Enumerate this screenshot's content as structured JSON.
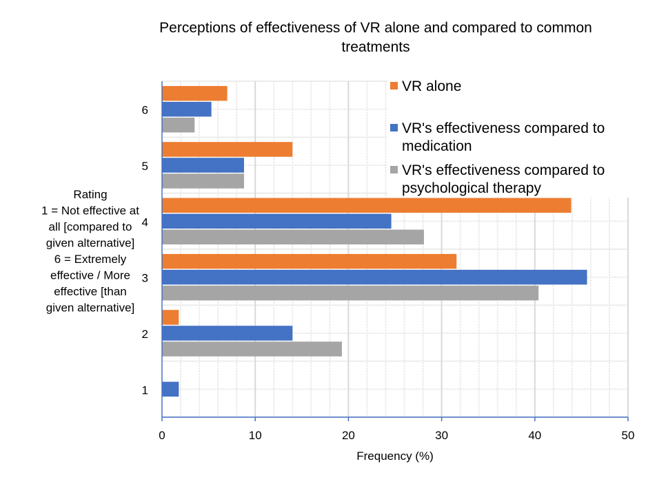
{
  "chart_data": {
    "type": "bar",
    "orientation": "horizontal",
    "title": [
      "Perceptions of effectiveness of VR alone and compared to common",
      "treatments"
    ],
    "xlabel": "Frequency (%)",
    "ylabel": [
      "Rating",
      "1 = Not effective at",
      "all [compared to",
      "given alternative]",
      "6 = Extremely",
      "effective / More",
      "effective [than",
      "given alternative]"
    ],
    "categories": [
      "6",
      "5",
      "4",
      "3",
      "2",
      "1"
    ],
    "xlim": [
      0,
      50
    ],
    "xticks": [
      "0",
      "10",
      "20",
      "30",
      "40",
      "50"
    ],
    "grid": true,
    "legend_position": "top-right",
    "series": [
      {
        "name": "VR alone",
        "color": "#ED7D31",
        "values": [
          7.0,
          14.0,
          43.9,
          31.6,
          1.8,
          0
        ]
      },
      {
        "name": [
          "VR's effectiveness compared to",
          "medication"
        ],
        "color": "#4472C4",
        "values": [
          5.3,
          8.8,
          24.6,
          45.6,
          14.0,
          1.8
        ]
      },
      {
        "name": [
          "VR's effectiveness compared to",
          "psychological therapy"
        ],
        "color": "#A5A5A5",
        "values": [
          3.5,
          8.8,
          28.1,
          40.4,
          19.3,
          0
        ]
      }
    ]
  }
}
